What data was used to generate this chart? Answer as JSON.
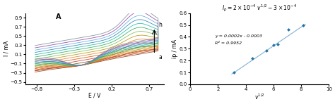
{
  "left_title": "A",
  "left_xlabel": "E / V",
  "left_ylabel": "I / mA",
  "left_xlim": [
    -0.95,
    0.9
  ],
  "left_ylim": [
    -0.55,
    1.0
  ],
  "left_xticks": [
    -0.8,
    -0.3,
    0.2,
    0.7
  ],
  "left_yticks": [
    -0.5,
    -0.3,
    -0.1,
    0.1,
    0.3,
    0.5,
    0.7,
    0.9
  ],
  "cv_colors": [
    "#8B4513",
    "#c0392b",
    "#d35400",
    "#e67e22",
    "#b7950b",
    "#7dbe4f",
    "#27ae60",
    "#1abc9c",
    "#2980b9",
    "#5dade2",
    "#8e44ad",
    "#7f8c8d"
  ],
  "right_ylabel": "ip / mA",
  "right_xlim": [
    0,
    10
  ],
  "right_ylim": [
    0,
    0.6
  ],
  "right_xticks": [
    0,
    2,
    4,
    6,
    8,
    10
  ],
  "right_yticks": [
    0,
    0.1,
    0.2,
    0.3,
    0.4,
    0.5,
    0.6
  ],
  "scatter_x": [
    3.16,
    4.47,
    5.48,
    6.0,
    6.32,
    7.07,
    8.16
  ],
  "scatter_y": [
    0.098,
    0.22,
    0.285,
    0.33,
    0.335,
    0.46,
    0.495
  ],
  "line_slope": 0.061,
  "line_intercept": -0.095,
  "annotation_line1": "y = 0.0002x - 0.0003",
  "annotation_line2": "R² = 0.9952",
  "scatter_color": "#2471a3",
  "line_color": "#7fb3d3",
  "bg_color": "#f0f0f0"
}
